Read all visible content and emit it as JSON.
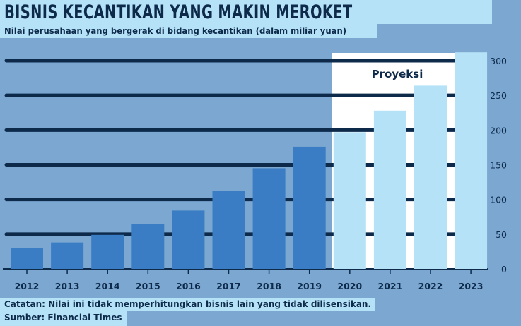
{
  "header": {
    "title": "BISNIS KECANTIKAN YANG MAKIN MEROKET",
    "subtitle": "Nilai perusahaan yang bergerak di bidang kecantikan (dalam miliar yuan)"
  },
  "footer": {
    "note": "Catatan: Nilai ini tidak memperhitungkan bisnis lain yang tidak dilisensikan.",
    "source": "Sumber: Financial Times"
  },
  "colors": {
    "background": "#7ba7d0",
    "bar_actual": "#3b7dc4",
    "bar_projection": "#b5e2f7",
    "projection_panel": "#ffffff",
    "gridline": "#0d2a4b",
    "text": "#0d2a4b"
  },
  "chart_data": {
    "type": "bar",
    "title": "BISNIS KECANTIKAN YANG MAKIN MEROKET",
    "subtitle": "Nilai perusahaan yang bergerak di bidang kecantikan (dalam miliar yuan)",
    "categories": [
      "2012",
      "2013",
      "2014",
      "2015",
      "2016",
      "2017",
      "2018",
      "2019",
      "2020",
      "2021",
      "2022",
      "2023"
    ],
    "values": [
      30,
      38,
      49,
      65,
      84,
      112,
      145,
      176,
      197,
      228,
      264,
      312
    ],
    "projected_from": "2020",
    "projection_label": "Proyeksi",
    "y_ticks": [
      0,
      50,
      100,
      150,
      200,
      250,
      300
    ],
    "ylim": [
      0,
      300
    ],
    "y_axis_position": "right",
    "grid": true,
    "xlabel": "",
    "ylabel": ""
  }
}
